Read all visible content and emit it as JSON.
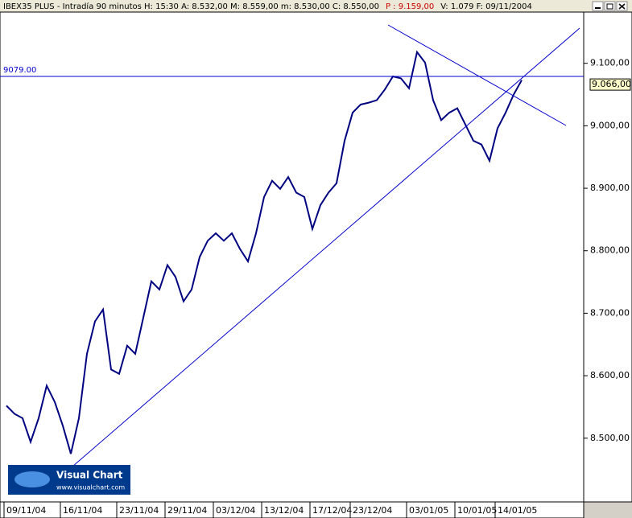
{
  "chart_data": {
    "type": "line",
    "title_parts": [
      {
        "text": "IBEX35 PLUS - Intradía 90 minutos  H: 15:30  A: 8.532,00  M: 8.559,00  m: 8.530,00  C: 8.550,00",
        "color": "#000000"
      },
      {
        "text": "P : 9.159,00",
        "color": "#cc0000"
      },
      {
        "text": "V: 1.079  F: 09/11/2004",
        "color": "#000000"
      }
    ],
    "categories": [
      "09/11/04",
      null,
      null,
      null,
      null,
      null,
      null,
      "16/11/04",
      null,
      null,
      null,
      null,
      null,
      null,
      "23/11/04",
      null,
      null,
      null,
      null,
      null,
      "29/11/04",
      null,
      null,
      null,
      null,
      null,
      "03/12/04",
      null,
      null,
      null,
      null,
      null,
      "13/12/04",
      null,
      null,
      null,
      null,
      null,
      "17/12/04",
      null,
      null,
      null,
      null,
      "23/12/04",
      null,
      null,
      null,
      null,
      null,
      null,
      "03/01/05",
      null,
      null,
      null,
      null,
      null,
      "10/01/05",
      null,
      null,
      null,
      null,
      "14/01/05",
      null,
      null,
      null
    ],
    "series": [
      {
        "color": "#000080",
        "values": [
          8552,
          8539,
          8532,
          8494,
          8532,
          8584,
          8558,
          8520,
          8475,
          8532,
          8635,
          8687,
          8706,
          8610,
          8603,
          8648,
          8635,
          8693,
          8751,
          8738,
          8777,
          8758,
          8719,
          8738,
          8790,
          8816,
          8828,
          8816,
          8828,
          8803,
          8783,
          8828,
          8886,
          8912,
          8899,
          8918,
          8893,
          8886,
          8835,
          8873,
          8893,
          8908,
          8976,
          9021,
          9034,
          9037,
          9041,
          9058,
          9079,
          9076,
          9060,
          9118,
          9101,
          9041,
          9009,
          9021,
          9028,
          9002,
          8976,
          8970,
          8944,
          8996,
          9021,
          9050,
          9073
        ]
      }
    ],
    "ylim": [
      8398,
      9182
    ],
    "yticks": [
      {
        "value": 8500,
        "label": "8.500,00"
      },
      {
        "value": 8600,
        "label": "8.600,00"
      },
      {
        "value": 8700,
        "label": "8.700,00"
      },
      {
        "value": 8800,
        "label": "8.800,00"
      },
      {
        "value": 8900,
        "label": "8.900,00"
      },
      {
        "value": 9000,
        "label": "9.000,00"
      },
      {
        "value": 9100,
        "label": "9.100,00"
      }
    ],
    "hline": {
      "value": 9079,
      "label": "9079.00"
    },
    "last_price": {
      "value": 9066,
      "label": "9.066,00"
    },
    "logo": {
      "name": "Visual Chart",
      "url": "www.visualchart.com"
    }
  }
}
